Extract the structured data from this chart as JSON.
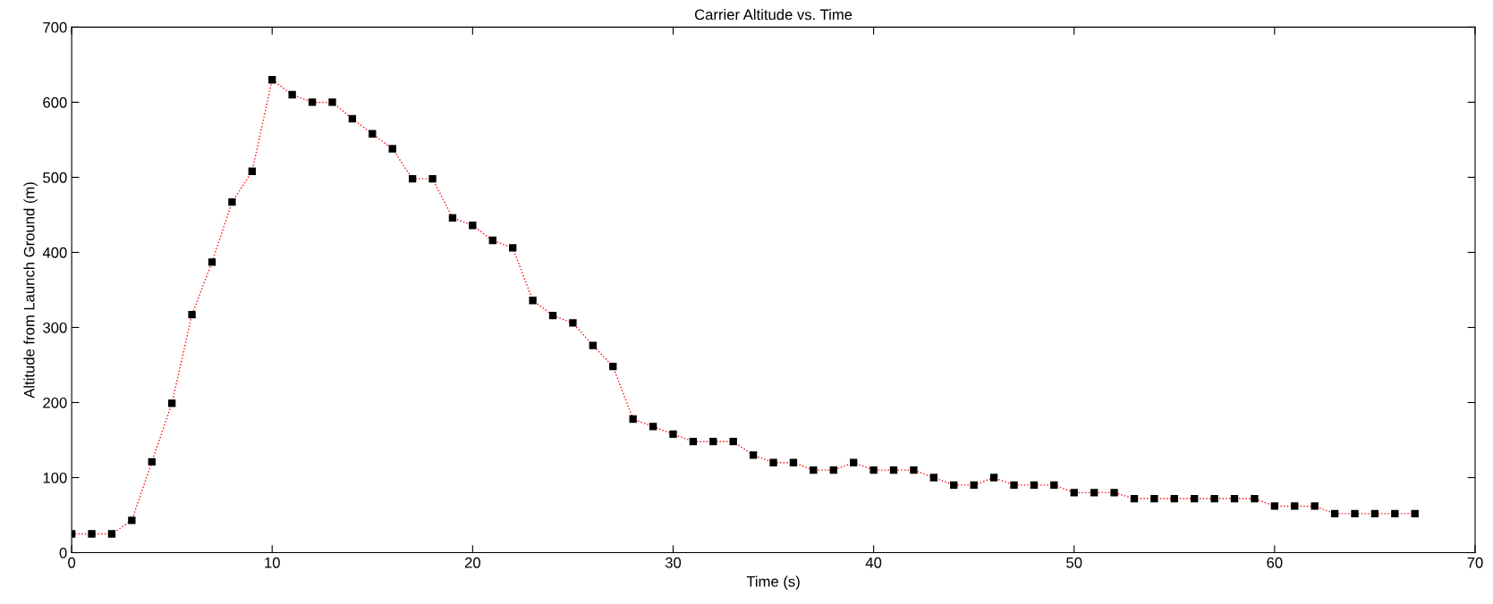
{
  "chart_data": {
    "type": "line",
    "title": "Carrier Altitude vs. Time",
    "xlabel": "Time (s)",
    "ylabel": "Altitude from Launch Ground (m)",
    "x": [
      0,
      1,
      2,
      3,
      4,
      5,
      6,
      7,
      8,
      9,
      10,
      11,
      12,
      13,
      14,
      15,
      16,
      17,
      18,
      19,
      20,
      21,
      22,
      23,
      24,
      25,
      26,
      27,
      28,
      29,
      30,
      31,
      32,
      33,
      34,
      35,
      36,
      37,
      38,
      39,
      40,
      41,
      42,
      43,
      44,
      45,
      46,
      47,
      48,
      49,
      50,
      51,
      52,
      53,
      54,
      55,
      56,
      57,
      58,
      59,
      60,
      61,
      62,
      63,
      64,
      65,
      66,
      67
    ],
    "series": [
      {
        "color": "#ff0000",
        "values": [
          25,
          25,
          25,
          43,
          121,
          199,
          317,
          387,
          467,
          508,
          630,
          610,
          600,
          600,
          578,
          558,
          538,
          498,
          498,
          446,
          436,
          416,
          406,
          336,
          316,
          306,
          276,
          248,
          178,
          168,
          158,
          148,
          148,
          148,
          130,
          120,
          120,
          110,
          110,
          120,
          110,
          110,
          110,
          100,
          90,
          90,
          100,
          90,
          90,
          90,
          80,
          80,
          80,
          72,
          72,
          72,
          72,
          72,
          72,
          72,
          62,
          62,
          62,
          52,
          52,
          52,
          52,
          52
        ]
      }
    ],
    "xlim": [
      0,
      70
    ],
    "xticks": [
      0,
      10,
      20,
      30,
      40,
      50,
      60,
      70
    ],
    "ylim": [
      0,
      700
    ],
    "yticks": [
      0,
      100,
      200,
      300,
      400,
      500,
      600,
      700
    ],
    "grid": false,
    "legend": false,
    "marker": "square",
    "line_style": "dotted"
  }
}
